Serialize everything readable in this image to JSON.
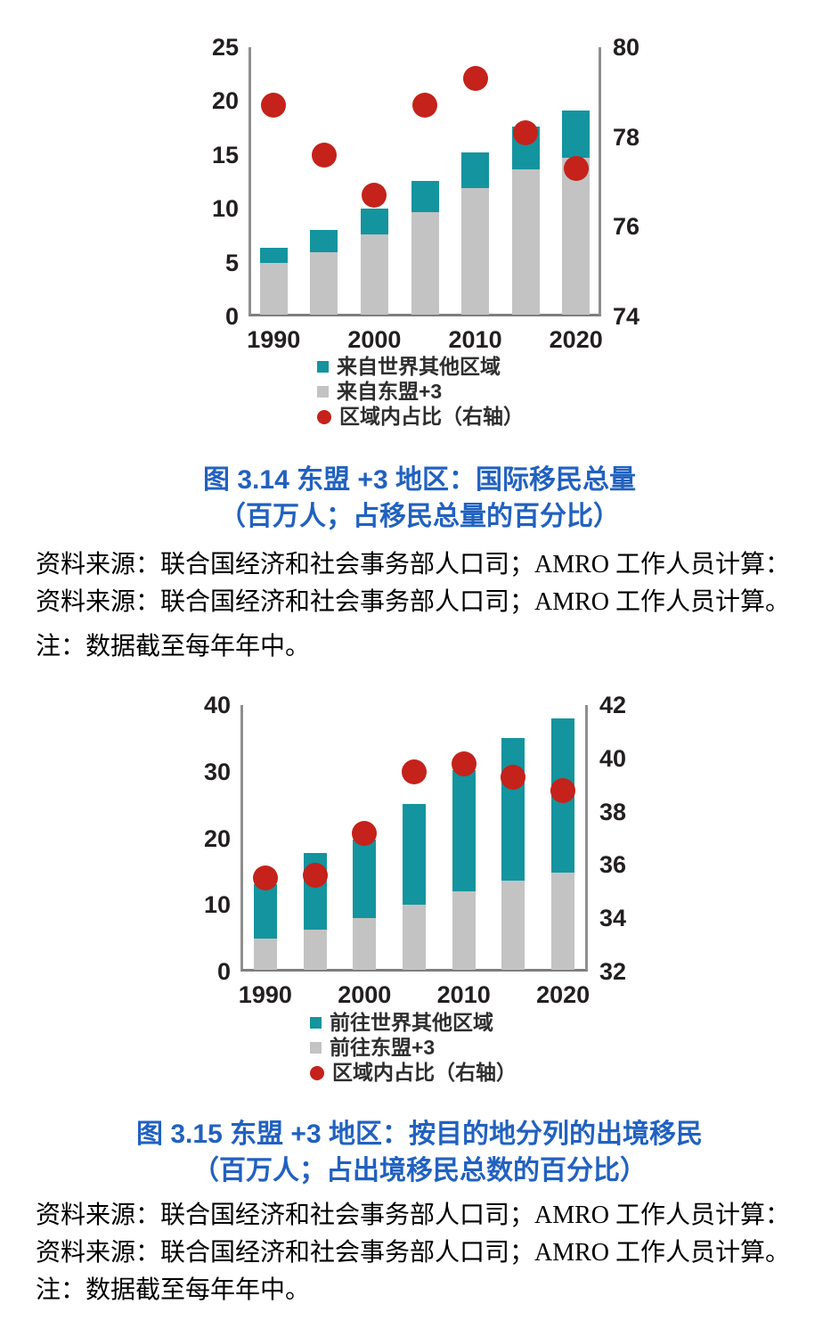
{
  "page": {
    "background": "#ffffff"
  },
  "colors": {
    "bar_gray": "#c3c3c3",
    "bar_teal": "#14949e",
    "dot_red": "#c4221a",
    "caption_blue": "#2161c0",
    "axis_line": "#8f8f8f",
    "tick_text": "#231f20"
  },
  "chart_data": [
    {
      "type": "bar",
      "subtype": "stacked-bars-with-right-axis-scatter",
      "title": "图 3.14 东盟 +3 地区：国际移民总量",
      "subtitle": "（百万人；占移民总量的百分比）",
      "categories": [
        1990,
        1995,
        2000,
        2005,
        2010,
        2015,
        2020
      ],
      "x_tick_labels": [
        "1990",
        "2000",
        "2010",
        "2020"
      ],
      "left_axis": {
        "min": 0,
        "max": 25,
        "ticks": [
          0,
          5,
          10,
          15,
          20,
          25
        ]
      },
      "right_axis": {
        "min": 74,
        "max": 80,
        "ticks": [
          74,
          76,
          78,
          80
        ]
      },
      "grid": "off",
      "legend_position": "bottom",
      "series": [
        {
          "name": "来自东盟+3",
          "type": "bar-stack-base",
          "axis": "left",
          "color": "#c3c3c3",
          "values": [
            5.0,
            6.0,
            7.6,
            9.7,
            11.9,
            13.7,
            14.7
          ]
        },
        {
          "name": "来自世界其他区域",
          "type": "bar-stack-top",
          "axis": "left",
          "color": "#14949e",
          "values": [
            1.4,
            2.0,
            2.4,
            2.9,
            3.3,
            3.9,
            4.4
          ]
        },
        {
          "name": "区域内占比（右轴）",
          "type": "scatter",
          "axis": "right",
          "color": "#c4221a",
          "values": [
            78.7,
            77.6,
            76.7,
            78.7,
            79.3,
            78.1,
            77.3
          ]
        }
      ],
      "legend": [
        {
          "marker": "square",
          "color": "#14949e",
          "label": "来自世界其他区域"
        },
        {
          "marker": "square",
          "color": "#c3c3c3",
          "label": "来自东盟+3"
        },
        {
          "marker": "circle",
          "color": "#c4221a",
          "label": "区域内占比（右轴）"
        }
      ]
    },
    {
      "type": "bar",
      "subtype": "stacked-bars-with-right-axis-scatter",
      "title": "图 3.15 东盟 +3 地区：按目的地分列的出境移民",
      "subtitle": "（百万人；占出境移民总数的百分比）",
      "categories": [
        1990,
        1995,
        2000,
        2005,
        2010,
        2015,
        2020
      ],
      "x_tick_labels": [
        "1990",
        "2000",
        "2010",
        "2020"
      ],
      "left_axis": {
        "min": 0,
        "max": 40,
        "ticks": [
          0,
          10,
          20,
          30,
          40
        ]
      },
      "right_axis": {
        "min": 32,
        "max": 42,
        "ticks": [
          32,
          34,
          36,
          38,
          40,
          42
        ]
      },
      "grid": "off",
      "legend_position": "bottom",
      "series": [
        {
          "name": "前往东盟+3",
          "type": "bar-stack-base",
          "axis": "left",
          "color": "#c3c3c3",
          "values": [
            5.0,
            6.3,
            8.0,
            10.0,
            12.0,
            13.7,
            14.8
          ]
        },
        {
          "name": "前往世界其他区域",
          "type": "bar-stack-top",
          "axis": "left",
          "color": "#14949e",
          "values": [
            8.1,
            11.5,
            11.8,
            15.2,
            18.3,
            21.3,
            23.2
          ]
        },
        {
          "name": "区域内占比（右轴）",
          "type": "scatter",
          "axis": "right",
          "color": "#c4221a",
          "values": [
            35.5,
            35.6,
            37.2,
            39.5,
            39.8,
            39.3,
            38.8
          ]
        }
      ],
      "legend": [
        {
          "marker": "square",
          "color": "#14949e",
          "label": "前往世界其他区域"
        },
        {
          "marker": "square",
          "color": "#c3c3c3",
          "label": "前往东盟+3"
        },
        {
          "marker": "circle",
          "color": "#c4221a",
          "label": "区域内占比（右轴）"
        }
      ]
    }
  ],
  "figures": [
    {
      "caption_line1": "图 3.14 东盟 +3 地区：国际移民总量",
      "caption_line2": "（百万人；占移民总量的百分比）",
      "source_line1": "资料来源：联合国经济和社会事务部人口司；AMRO 工作人员计算：",
      "source_line2": "资料来源：联合国经济和社会事务部人口司；AMRO 工作人员计算。",
      "note": "注：数据截至每年年中。"
    },
    {
      "caption_line1": "图 3.15 东盟 +3 地区：按目的地分列的出境移民",
      "caption_line2": "（百万人；占出境移民总数的百分比）",
      "source_line1": "资料来源：联合国经济和社会事务部人口司；AMRO 工作人员计算：",
      "source_line2": "资料来源：联合国经济和社会事务部人口司；AMRO 工作人员计算。",
      "note": "注：数据截至每年年中。"
    }
  ]
}
